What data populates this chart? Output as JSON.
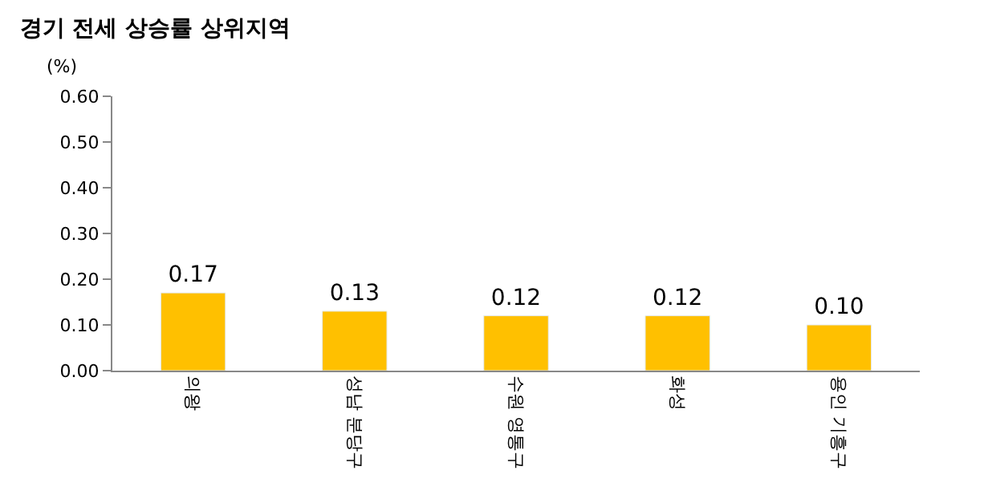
{
  "chart_data": {
    "type": "bar",
    "title": "경기 전세 상승률 상위지역",
    "ylabel": "(%)",
    "categories": [
      "의왕",
      "성남 분당구",
      "수원 영통구",
      "화성",
      "용인 기흥구"
    ],
    "values": [
      0.17,
      0.13,
      0.12,
      0.12,
      0.1
    ],
    "color": "#ffc000",
    "ylim": [
      0,
      0.6
    ],
    "yticks": [
      {
        "value": 0,
        "label": "0.00"
      },
      {
        "value": 0.1,
        "label": "0.10"
      },
      {
        "value": 0.2,
        "label": "0.20"
      },
      {
        "value": 0.3,
        "label": "0.30"
      },
      {
        "value": 0.4,
        "label": "0.40"
      },
      {
        "value": 0.5,
        "label": "0.50"
      },
      {
        "value": 0.6,
        "label": "0.60"
      }
    ],
    "value_labels": [
      "0.17",
      "0.13",
      "0.12",
      "0.12",
      "0.10"
    ],
    "legend": false
  }
}
